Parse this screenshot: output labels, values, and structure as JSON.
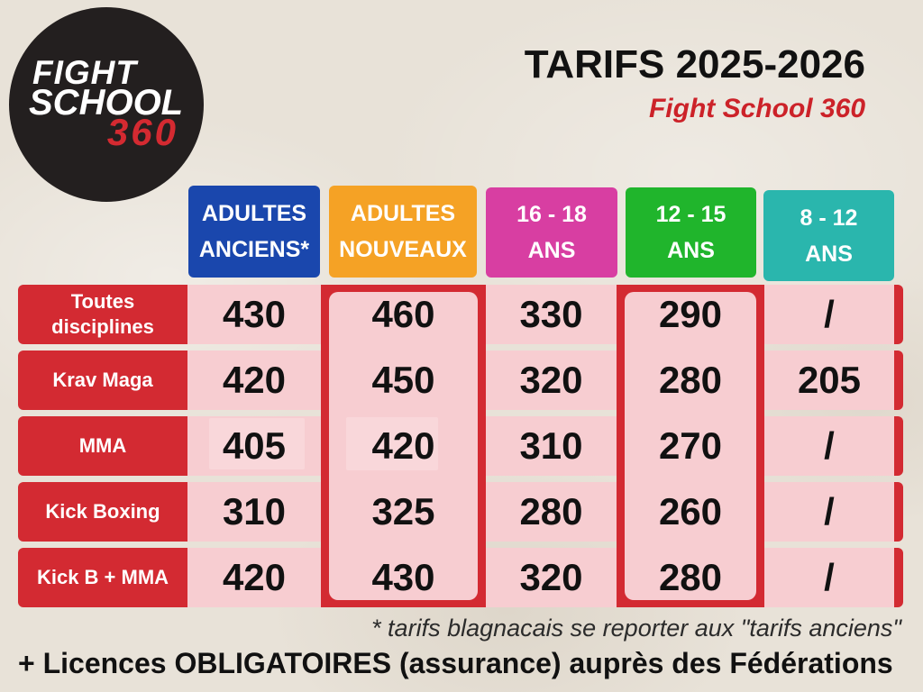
{
  "logo": {
    "line1": "FIGHT",
    "line2": "SCHOOL",
    "line3": "360"
  },
  "header": {
    "title": "TARIFS 2025-2026",
    "subtitle": "Fight School 360"
  },
  "columns": [
    {
      "line1": "ADULTES",
      "line2": "ANCIENS*",
      "color": "#1a47ad"
    },
    {
      "line1": "ADULTES",
      "line2": "NOUVEAUX",
      "color": "#f5a225"
    },
    {
      "line1": "16 - 18",
      "line2": "ANS",
      "color": "#d83ea2"
    },
    {
      "line1": "12 - 15",
      "line2": "ANS",
      "color": "#20b52c"
    },
    {
      "line1": "8 - 12",
      "line2": "ANS",
      "color": "#2ab6ad"
    }
  ],
  "rows": [
    {
      "label": "Toutes disciplines",
      "values": [
        "430",
        "460",
        "330",
        "290",
        "/"
      ]
    },
    {
      "label": "Krav Maga",
      "values": [
        "420",
        "450",
        "320",
        "280",
        "205"
      ]
    },
    {
      "label": "MMA",
      "values": [
        "405",
        "420",
        "310",
        "270",
        "/"
      ]
    },
    {
      "label": "Kick Boxing",
      "values": [
        "310",
        "325",
        "280",
        "260",
        "/"
      ]
    },
    {
      "label": "Kick B + MMA",
      "values": [
        "420",
        "430",
        "320",
        "280",
        "/"
      ]
    }
  ],
  "footnote": "* tarifs blagnacais se reporter aux \"tarifs anciens\"",
  "licence_note": "+ Licences OBLIGATOIRES (assurance) auprès des Fédérations",
  "colors": {
    "background": "#e8e2d8",
    "logo_circle": "#231f1f",
    "logo_accent": "#d42a31",
    "subtitle_red": "#cc2229",
    "row_red": "#d32a32",
    "cell_pink": "#f7cdd1",
    "value_highlight": "#f9d7da"
  }
}
